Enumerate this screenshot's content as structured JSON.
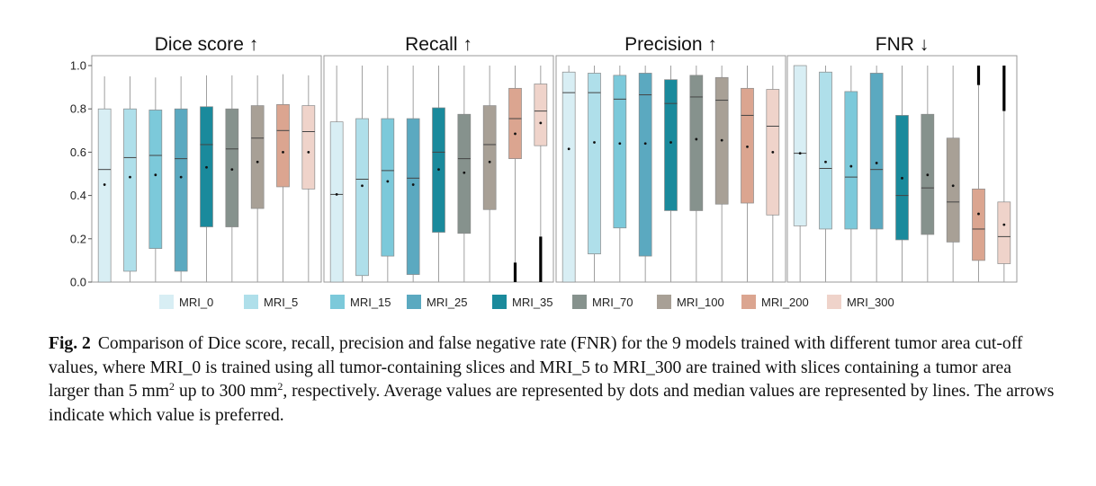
{
  "chart_data": {
    "type": "box",
    "y_ticks": [
      "0.0",
      "0.2",
      "0.4",
      "0.6",
      "0.8",
      "1.0"
    ],
    "ylim": [
      0,
      1
    ],
    "grid": false,
    "legend_position": "bottom",
    "series": [
      {
        "name": "MRI_0",
        "color": "#d8eef4"
      },
      {
        "name": "MRI_5",
        "color": "#afdfea"
      },
      {
        "name": "MRI_15",
        "color": "#7cc9da"
      },
      {
        "name": "MRI_25",
        "color": "#5ba9c0"
      },
      {
        "name": "MRI_35",
        "color": "#1a8a9c"
      },
      {
        "name": "MRI_70",
        "color": "#86928d"
      },
      {
        "name": "MRI_100",
        "color": "#a8a096"
      },
      {
        "name": "MRI_200",
        "color": "#dba590"
      },
      {
        "name": "MRI_300",
        "color": "#efd3ca"
      }
    ],
    "panels": [
      {
        "title": "Dice score ↑",
        "boxes": [
          {
            "whisker_low": 0.0,
            "q1": 0.0,
            "median": 0.52,
            "q3": 0.8,
            "whisker_high": 0.95,
            "mean": 0.45
          },
          {
            "whisker_low": 0.0,
            "q1": 0.05,
            "median": 0.575,
            "q3": 0.8,
            "whisker_high": 0.95,
            "mean": 0.485
          },
          {
            "whisker_low": 0.0,
            "q1": 0.155,
            "median": 0.585,
            "q3": 0.795,
            "whisker_high": 0.945,
            "mean": 0.495
          },
          {
            "whisker_low": 0.0,
            "q1": 0.05,
            "median": 0.57,
            "q3": 0.8,
            "whisker_high": 0.95,
            "mean": 0.485
          },
          {
            "whisker_low": 0.0,
            "q1": 0.255,
            "median": 0.635,
            "q3": 0.81,
            "whisker_high": 0.955,
            "mean": 0.53
          },
          {
            "whisker_low": 0.0,
            "q1": 0.255,
            "median": 0.615,
            "q3": 0.8,
            "whisker_high": 0.955,
            "mean": 0.52
          },
          {
            "whisker_low": 0.0,
            "q1": 0.34,
            "median": 0.665,
            "q3": 0.815,
            "whisker_high": 0.955,
            "mean": 0.555
          },
          {
            "whisker_low": 0.0,
            "q1": 0.44,
            "median": 0.7,
            "q3": 0.82,
            "whisker_high": 0.96,
            "mean": 0.6
          },
          {
            "whisker_low": 0.0,
            "q1": 0.43,
            "median": 0.695,
            "q3": 0.815,
            "whisker_high": 0.955,
            "mean": 0.6
          }
        ]
      },
      {
        "title": "Recall ↑",
        "boxes": [
          {
            "whisker_low": 0.0,
            "q1": 0.0,
            "median": 0.405,
            "q3": 0.74,
            "whisker_high": 1.0,
            "mean": 0.405
          },
          {
            "whisker_low": 0.0,
            "q1": 0.03,
            "median": 0.475,
            "q3": 0.755,
            "whisker_high": 1.0,
            "mean": 0.445
          },
          {
            "whisker_low": 0.0,
            "q1": 0.12,
            "median": 0.515,
            "q3": 0.755,
            "whisker_high": 1.0,
            "mean": 0.465
          },
          {
            "whisker_low": 0.0,
            "q1": 0.035,
            "median": 0.48,
            "q3": 0.755,
            "whisker_high": 1.0,
            "mean": 0.45
          },
          {
            "whisker_low": 0.0,
            "q1": 0.23,
            "median": 0.6,
            "q3": 0.805,
            "whisker_high": 1.0,
            "mean": 0.52
          },
          {
            "whisker_low": 0.0,
            "q1": 0.225,
            "median": 0.57,
            "q3": 0.775,
            "whisker_high": 1.0,
            "mean": 0.505
          },
          {
            "whisker_low": 0.0,
            "q1": 0.335,
            "median": 0.635,
            "q3": 0.815,
            "whisker_high": 1.0,
            "mean": 0.555
          },
          {
            "whisker_low": 0.09,
            "q1": 0.57,
            "median": 0.755,
            "q3": 0.895,
            "whisker_high": 1.0,
            "mean": 0.685,
            "outlier_low": 0.0,
            "outlier_high": 0.09
          },
          {
            "whisker_low": 0.21,
            "q1": 0.63,
            "median": 0.79,
            "q3": 0.915,
            "whisker_high": 1.0,
            "mean": 0.735,
            "outlier_low": 0.0,
            "outlier_high": 0.21
          }
        ]
      },
      {
        "title": "Precision ↑",
        "boxes": [
          {
            "whisker_low": 0.0,
            "q1": 0.0,
            "median": 0.875,
            "q3": 0.97,
            "whisker_high": 1.0,
            "mean": 0.615
          },
          {
            "whisker_low": 0.0,
            "q1": 0.13,
            "median": 0.875,
            "q3": 0.965,
            "whisker_high": 1.0,
            "mean": 0.645
          },
          {
            "whisker_low": 0.0,
            "q1": 0.25,
            "median": 0.845,
            "q3": 0.955,
            "whisker_high": 1.0,
            "mean": 0.64
          },
          {
            "whisker_low": 0.0,
            "q1": 0.12,
            "median": 0.865,
            "q3": 0.965,
            "whisker_high": 1.0,
            "mean": 0.64
          },
          {
            "whisker_low": 0.0,
            "q1": 0.33,
            "median": 0.825,
            "q3": 0.935,
            "whisker_high": 1.0,
            "mean": 0.645
          },
          {
            "whisker_low": 0.0,
            "q1": 0.33,
            "median": 0.855,
            "q3": 0.955,
            "whisker_high": 1.0,
            "mean": 0.66
          },
          {
            "whisker_low": 0.0,
            "q1": 0.36,
            "median": 0.84,
            "q3": 0.945,
            "whisker_high": 1.0,
            "mean": 0.655
          },
          {
            "whisker_low": 0.0,
            "q1": 0.365,
            "median": 0.77,
            "q3": 0.895,
            "whisker_high": 1.0,
            "mean": 0.625
          },
          {
            "whisker_low": 0.0,
            "q1": 0.31,
            "median": 0.72,
            "q3": 0.89,
            "whisker_high": 1.0,
            "mean": 0.6
          }
        ]
      },
      {
        "title": "FNR ↓",
        "boxes": [
          {
            "whisker_low": 0.0,
            "q1": 0.26,
            "median": 0.595,
            "q3": 1.0,
            "whisker_high": 1.0,
            "mean": 0.595
          },
          {
            "whisker_low": 0.0,
            "q1": 0.245,
            "median": 0.525,
            "q3": 0.97,
            "whisker_high": 1.0,
            "mean": 0.555
          },
          {
            "whisker_low": 0.0,
            "q1": 0.245,
            "median": 0.485,
            "q3": 0.88,
            "whisker_high": 1.0,
            "mean": 0.535
          },
          {
            "whisker_low": 0.0,
            "q1": 0.245,
            "median": 0.52,
            "q3": 0.965,
            "whisker_high": 1.0,
            "mean": 0.55
          },
          {
            "whisker_low": 0.0,
            "q1": 0.195,
            "median": 0.4,
            "q3": 0.77,
            "whisker_high": 1.0,
            "mean": 0.48
          },
          {
            "whisker_low": 0.0,
            "q1": 0.22,
            "median": 0.435,
            "q3": 0.775,
            "whisker_high": 1.0,
            "mean": 0.495
          },
          {
            "whisker_low": 0.0,
            "q1": 0.185,
            "median": 0.37,
            "q3": 0.665,
            "whisker_high": 1.0,
            "mean": 0.445
          },
          {
            "whisker_low": 0.0,
            "q1": 0.1,
            "median": 0.245,
            "q3": 0.43,
            "whisker_high": 0.91,
            "mean": 0.315,
            "outlier_low": 0.91,
            "outlier_high": 1.0
          },
          {
            "whisker_low": 0.0,
            "q1": 0.085,
            "median": 0.21,
            "q3": 0.37,
            "whisker_high": 0.79,
            "mean": 0.265,
            "outlier_low": 0.79,
            "outlier_high": 1.0
          }
        ]
      }
    ]
  },
  "caption": {
    "label": "Fig. 2",
    "part1": "Comparison of Dice score, recall, precision and false negative rate (FNR) for the 9 models trained with different tumor area cut-off values, where MRI_0 is trained using all tumor-containing slices and MRI_5 to MRI_300 are trained with slices containing a tumor area larger than 5 mm",
    "sup1": "2",
    "part2": " up to 300 mm",
    "sup2": "2",
    "part3": ", respectively. Average values are represented by dots and median values are represented by lines. The arrows indicate which value is preferred."
  }
}
